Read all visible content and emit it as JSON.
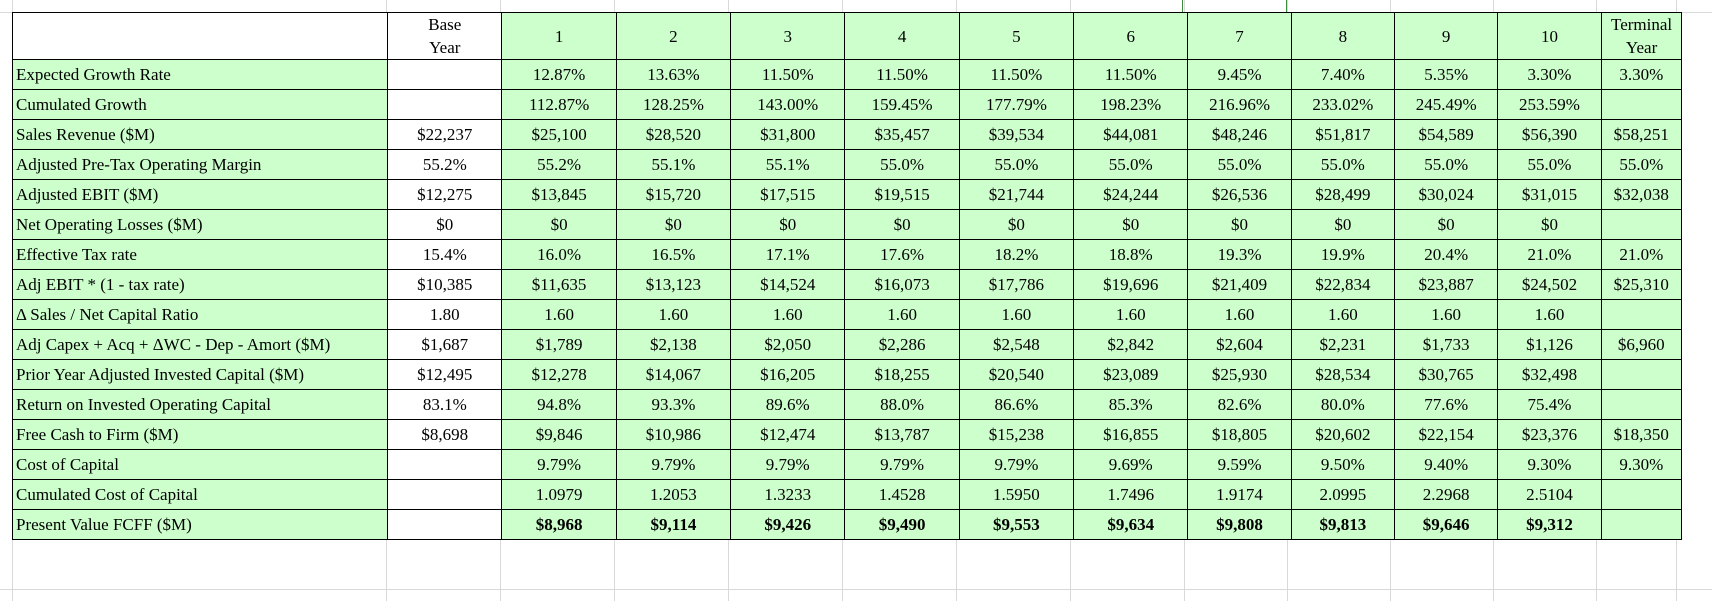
{
  "header": {
    "base_label": "Base Year",
    "years": [
      "1",
      "2",
      "3",
      "4",
      "5",
      "6",
      "7",
      "8",
      "9",
      "10"
    ],
    "terminal_label": "Terminal Year"
  },
  "rows": [
    {
      "label": "Expected Growth Rate",
      "base": "",
      "years": [
        "12.87%",
        "13.63%",
        "11.50%",
        "11.50%",
        "11.50%",
        "11.50%",
        "9.45%",
        "7.40%",
        "5.35%",
        "3.30%"
      ],
      "terminal": "3.30%",
      "bold": false
    },
    {
      "label": "Cumulated Growth",
      "base": "",
      "years": [
        "112.87%",
        "128.25%",
        "143.00%",
        "159.45%",
        "177.79%",
        "198.23%",
        "216.96%",
        "233.02%",
        "245.49%",
        "253.59%"
      ],
      "terminal": "",
      "bold": false
    },
    {
      "label": "Sales Revenue ($M)",
      "base": "$22,237",
      "years": [
        "$25,100",
        "$28,520",
        "$31,800",
        "$35,457",
        "$39,534",
        "$44,081",
        "$48,246",
        "$51,817",
        "$54,589",
        "$56,390"
      ],
      "terminal": "$58,251",
      "bold": false
    },
    {
      "label": "Adjusted  Pre-Tax Operating Margin",
      "base": "55.2%",
      "years": [
        "55.2%",
        "55.1%",
        "55.1%",
        "55.0%",
        "55.0%",
        "55.0%",
        "55.0%",
        "55.0%",
        "55.0%",
        "55.0%"
      ],
      "terminal": "55.0%",
      "bold": false
    },
    {
      "label": "Adjusted EBIT ($M)",
      "base": "$12,275",
      "years": [
        "$13,845",
        "$15,720",
        "$17,515",
        "$19,515",
        "$21,744",
        "$24,244",
        "$26,536",
        "$28,499",
        "$30,024",
        "$31,015"
      ],
      "terminal": "$32,038",
      "bold": false
    },
    {
      "label": "Net Operating Losses ($M)",
      "base": "$0",
      "years": [
        "$0",
        "$0",
        "$0",
        "$0",
        "$0",
        "$0",
        "$0",
        "$0",
        "$0",
        "$0"
      ],
      "terminal": "",
      "bold": false
    },
    {
      "label": "Effective Tax rate",
      "base": "15.4%",
      "years": [
        "16.0%",
        "16.5%",
        "17.1%",
        "17.6%",
        "18.2%",
        "18.8%",
        "19.3%",
        "19.9%",
        "20.4%",
        "21.0%"
      ],
      "terminal": "21.0%",
      "bold": false
    },
    {
      "label": "Adj EBIT * (1 - tax rate)",
      "base": "$10,385",
      "years": [
        "$11,635",
        "$13,123",
        "$14,524",
        "$16,073",
        "$17,786",
        "$19,696",
        "$21,409",
        "$22,834",
        "$23,887",
        "$24,502"
      ],
      "terminal": "$25,310",
      "bold": false
    },
    {
      "label": "Δ Sales / Net Capital Ratio",
      "base": "1.80",
      "years": [
        "1.60",
        "1.60",
        "1.60",
        "1.60",
        "1.60",
        "1.60",
        "1.60",
        "1.60",
        "1.60",
        "1.60"
      ],
      "terminal": "",
      "bold": false
    },
    {
      "label": "Adj Capex + Acq + ΔWC - Dep - Amort ($M)",
      "base": "$1,687",
      "years": [
        "$1,789",
        "$2,138",
        "$2,050",
        "$2,286",
        "$2,548",
        "$2,842",
        "$2,604",
        "$2,231",
        "$1,733",
        "$1,126"
      ],
      "terminal": "$6,960",
      "bold": false
    },
    {
      "label": "Prior Year Adjusted Invested Capital ($M)",
      "base": "$12,495",
      "years": [
        "$12,278",
        "$14,067",
        "$16,205",
        "$18,255",
        "$20,540",
        "$23,089",
        "$25,930",
        "$28,534",
        "$30,765",
        "$32,498"
      ],
      "terminal": "",
      "bold": false
    },
    {
      "label": "Return on Invested Operating Capital",
      "base": "83.1%",
      "years": [
        "94.8%",
        "93.3%",
        "89.6%",
        "88.0%",
        "86.6%",
        "85.3%",
        "82.6%",
        "80.0%",
        "77.6%",
        "75.4%"
      ],
      "terminal": "",
      "bold": false
    },
    {
      "label": "Free Cash to Firm ($M)",
      "base": "$8,698",
      "years": [
        "$9,846",
        "$10,986",
        "$12,474",
        "$13,787",
        "$15,238",
        "$16,855",
        "$18,805",
        "$20,602",
        "$22,154",
        "$23,376"
      ],
      "terminal": "$18,350",
      "bold": false
    },
    {
      "label": "Cost of Capital",
      "base": "",
      "years": [
        "9.79%",
        "9.79%",
        "9.79%",
        "9.79%",
        "9.79%",
        "9.69%",
        "9.59%",
        "9.50%",
        "9.40%",
        "9.30%"
      ],
      "terminal": "9.30%",
      "bold": false
    },
    {
      "label": "Cumulated Cost of Capital",
      "base": "",
      "years": [
        "1.0979",
        "1.2053",
        "1.3233",
        "1.4528",
        "1.5950",
        "1.7496",
        "1.9174",
        "2.0995",
        "2.2968",
        "2.5104"
      ],
      "terminal": "",
      "bold": false
    },
    {
      "label": "Present Value FCFF ($M)",
      "base": "",
      "years": [
        "$8,968",
        "$9,114",
        "$9,426",
        "$9,490",
        "$9,553",
        "$9,634",
        "$9,808",
        "$9,813",
        "$9,646",
        "$9,312"
      ],
      "terminal": "",
      "bold": true
    }
  ]
}
